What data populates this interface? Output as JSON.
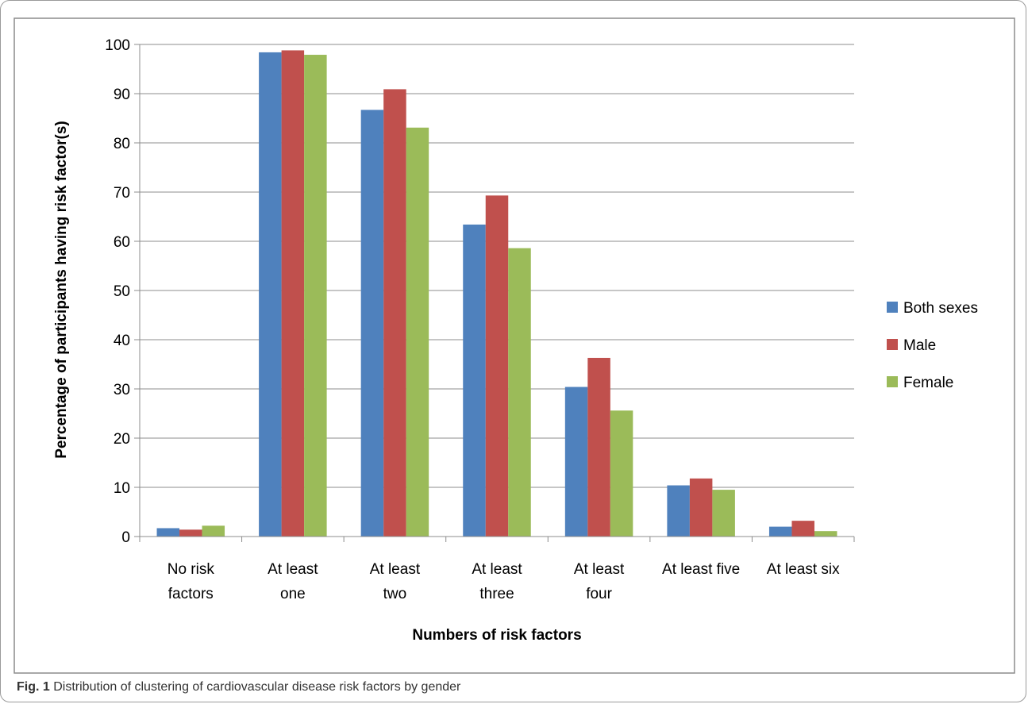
{
  "caption": {
    "label": "Fig. 1",
    "text": "Distribution of clustering of cardiovascular disease risk factors by gender"
  },
  "chart_data": {
    "type": "bar",
    "title": "",
    "xlabel": "Numbers of risk factors",
    "ylabel": "Percentage of participants having risk factor(s)",
    "ylim": [
      0,
      100
    ],
    "yticks": [
      0,
      10,
      20,
      30,
      40,
      50,
      60,
      70,
      80,
      90,
      100
    ],
    "grid": true,
    "legend_position": "right",
    "categories": [
      [
        "No risk",
        "factors"
      ],
      [
        "At least",
        "one"
      ],
      [
        "At least",
        "two"
      ],
      [
        "At least",
        "three"
      ],
      [
        "At least",
        "four"
      ],
      [
        "At least five"
      ],
      [
        "At least six"
      ]
    ],
    "series": [
      {
        "name": "Both sexes",
        "color": "#4f81bd",
        "values": [
          1.7,
          98.4,
          86.7,
          63.4,
          30.4,
          10.4,
          2.0
        ]
      },
      {
        "name": "Male",
        "color": "#c0504d",
        "values": [
          1.4,
          98.8,
          90.9,
          69.3,
          36.3,
          11.8,
          3.2
        ]
      },
      {
        "name": "Female",
        "color": "#9bbb59",
        "values": [
          2.2,
          97.9,
          83.1,
          58.6,
          25.6,
          9.5,
          1.1
        ]
      }
    ]
  }
}
